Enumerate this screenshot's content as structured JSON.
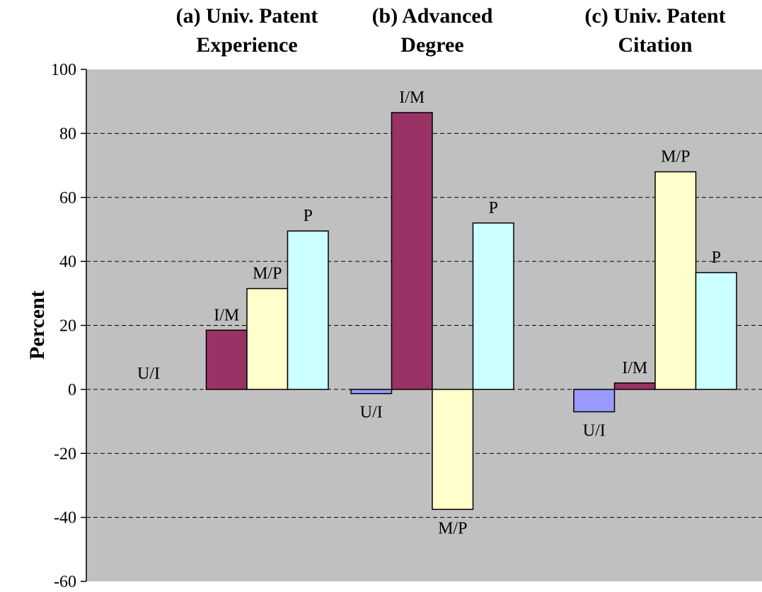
{
  "chart_data": {
    "type": "bar",
    "title": "",
    "xlabel": "",
    "ylabel": "Percent",
    "ylim": [
      -60,
      100
    ],
    "yticks": [
      100,
      80,
      60,
      40,
      20,
      0,
      -20,
      -40,
      -60
    ],
    "grid": true,
    "plot_background": "#C0C0C0",
    "groups": [
      {
        "title_lines": [
          "(a) Univ. Patent",
          "Experience"
        ],
        "bars": [
          {
            "label": "U/I",
            "value": 0
          },
          {
            "label": "I/M",
            "value": 18.5
          },
          {
            "label": "M/P",
            "value": 31.5
          },
          {
            "label": "P",
            "value": 49.5
          }
        ]
      },
      {
        "title_lines": [
          "(b) Advanced",
          "Degree"
        ],
        "bars": [
          {
            "label": "U/I",
            "value": -1.3
          },
          {
            "label": "I/M",
            "value": 86.5
          },
          {
            "label": "M/P",
            "value": -37.5
          },
          {
            "label": "P",
            "value": 52
          }
        ]
      },
      {
        "title_lines": [
          "(c) Univ. Patent",
          "Citation"
        ],
        "bars": [
          {
            "label": "U/I",
            "value": -7
          },
          {
            "label": "I/M",
            "value": 2
          },
          {
            "label": "M/P",
            "value": 68
          },
          {
            "label": "P",
            "value": 36.5
          }
        ]
      }
    ],
    "bar_colors": {
      "U/I": "#9999FF",
      "I/M": "#993366",
      "M/P": "#FFFFCC",
      "P": "#CCFFFF"
    }
  }
}
